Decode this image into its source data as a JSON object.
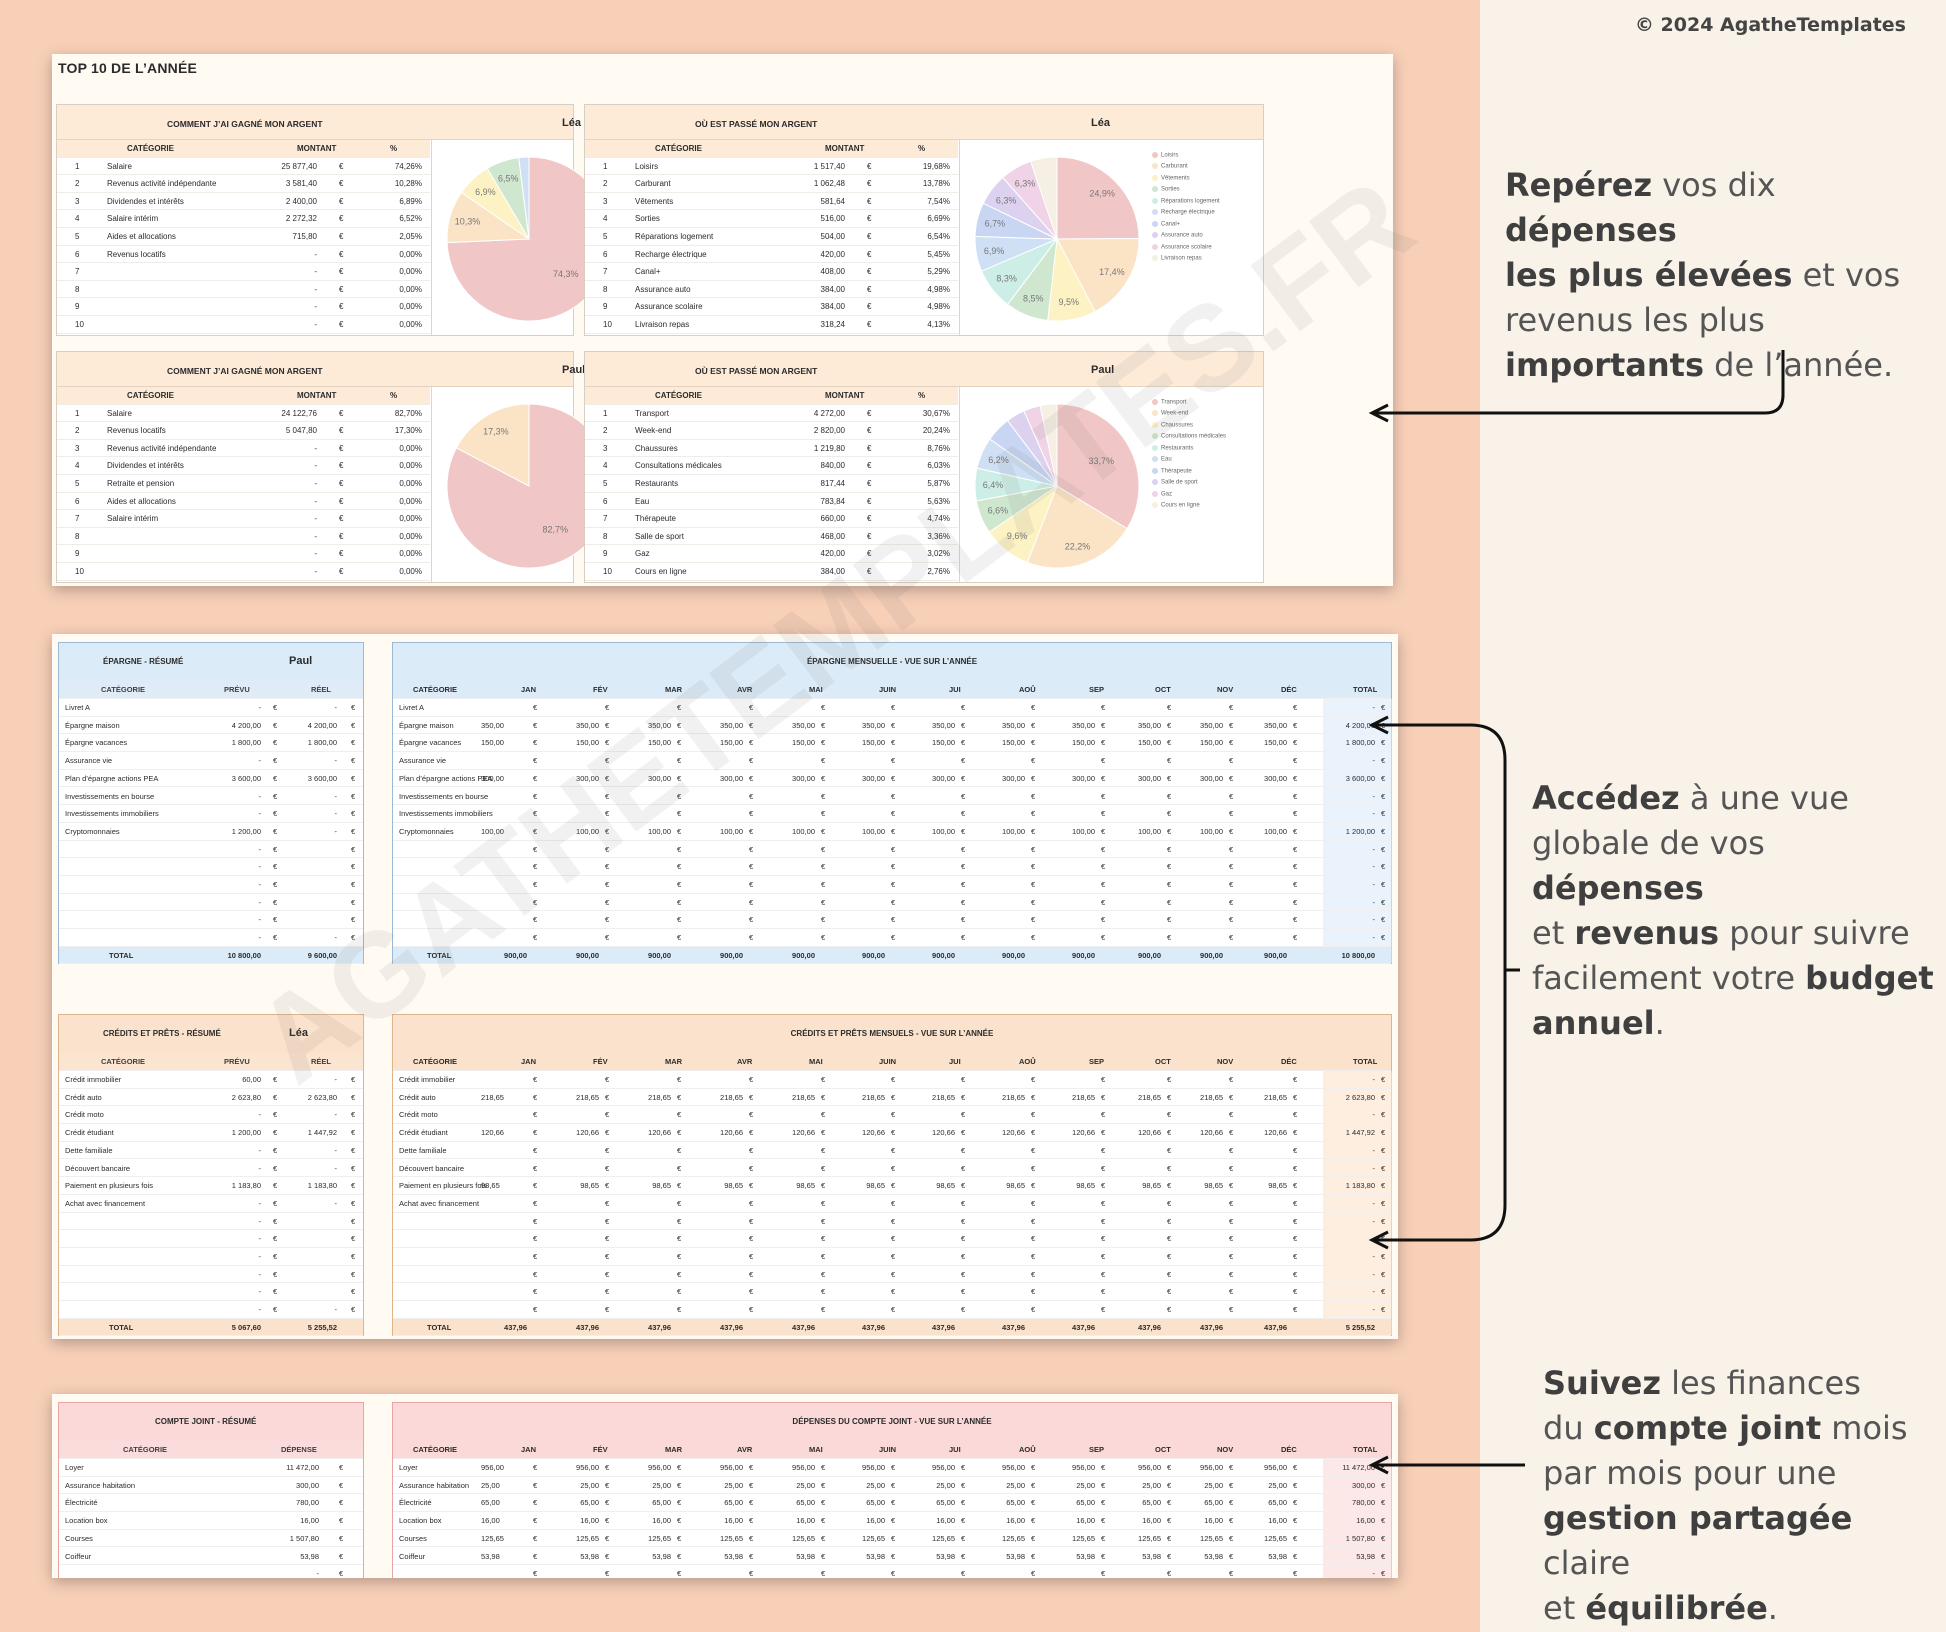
{
  "copyright": "© 2024 AgatheTemplates",
  "watermark": "AGATHETEMPLATES.FR",
  "top10": {
    "title": "TOP 10 DE L’ANNÉE",
    "blocks": [
      {
        "kind": "income",
        "title": "COMMENT J’AI GAGNÉ MON ARGENT",
        "who": "Léa",
        "headers": [
          "CATÉGORIE",
          "MONTANT",
          "%"
        ],
        "rows": [
          [
            "1",
            "Salaire",
            "25 877,40",
            "€",
            "74,26%"
          ],
          [
            "2",
            "Revenus activité indépendante",
            "3 581,40",
            "€",
            "10,28%"
          ],
          [
            "3",
            "Dividendes et intérêts",
            "2 400,00",
            "€",
            "6,89%"
          ],
          [
            "4",
            "Salaire intérim",
            "2 272,32",
            "€",
            "6,52%"
          ],
          [
            "5",
            "Aides et allocations",
            "715,80",
            "€",
            "2,05%"
          ],
          [
            "6",
            "Revenus locatifs",
            "-",
            "€",
            "0,00%"
          ],
          [
            "7",
            "",
            "-",
            "€",
            "0,00%"
          ],
          [
            "8",
            "",
            "-",
            "€",
            "0,00%"
          ],
          [
            "9",
            "",
            "-",
            "€",
            "0,00%"
          ],
          [
            "10",
            "",
            "-",
            "€",
            "0,00%"
          ]
        ],
        "pie": [
          {
            "label": "Salaire",
            "value": 74.3,
            "pct": "74,3%",
            "color": "#f1c6c6"
          },
          {
            "label": "Revenus activité indépendante",
            "value": 10.3,
            "pct": "10,3%",
            "color": "#fbe3c6"
          },
          {
            "label": "Dividendes et intérêts",
            "value": 6.9,
            "pct": "6,9%",
            "color": "#fdf2c4"
          },
          {
            "label": "Salaire intérim",
            "value": 6.5,
            "pct": "6,5%",
            "color": "#cfe7cf"
          },
          {
            "label": "Aides et allocations",
            "value": 2.0,
            "pct": "",
            "color": "#cfe0f5"
          }
        ]
      },
      {
        "kind": "expense",
        "title": "OÙ EST PASSÉ MON ARGENT",
        "who": "Léa",
        "headers": [
          "CATÉGORIE",
          "MONTANT",
          "%"
        ],
        "rows": [
          [
            "1",
            "Loisirs",
            "1 517,40",
            "€",
            "19,68%"
          ],
          [
            "2",
            "Carburant",
            "1 062,48",
            "€",
            "13,78%"
          ],
          [
            "3",
            "Vêtements",
            "581,64",
            "€",
            "7,54%"
          ],
          [
            "4",
            "Sorties",
            "516,00",
            "€",
            "6,69%"
          ],
          [
            "5",
            "Réparations logement",
            "504,00",
            "€",
            "6,54%"
          ],
          [
            "6",
            "Recharge électrique",
            "420,00",
            "€",
            "5,45%"
          ],
          [
            "7",
            "Canal+",
            "408,00",
            "€",
            "5,29%"
          ],
          [
            "8",
            "Assurance auto",
            "384,00",
            "€",
            "4,98%"
          ],
          [
            "9",
            "Assurance scolaire",
            "384,00",
            "€",
            "4,98%"
          ],
          [
            "10",
            "Livraison repas",
            "318,24",
            "€",
            "4,13%"
          ]
        ],
        "pie": [
          {
            "label": "Loisirs",
            "value": 24.9,
            "pct": "24,9%",
            "color": "#f1c6c6"
          },
          {
            "label": "Carburant",
            "value": 17.4,
            "pct": "17,4%",
            "color": "#fbe3c6"
          },
          {
            "label": "Vêtements",
            "value": 9.5,
            "pct": "9,5%",
            "color": "#fdf2c4"
          },
          {
            "label": "Sorties",
            "value": 8.5,
            "pct": "8,5%",
            "color": "#cfe7cf"
          },
          {
            "label": "Réparations logement",
            "value": 8.3,
            "pct": "8,3%",
            "color": "#cdeee6"
          },
          {
            "label": "Recharge électrique",
            "value": 6.9,
            "pct": "6,9%",
            "color": "#cfe0f5"
          },
          {
            "label": "Canal+",
            "value": 6.7,
            "pct": "6,7%",
            "color": "#c9d6f3"
          },
          {
            "label": "Assurance auto",
            "value": 6.3,
            "pct": "6,3%",
            "color": "#dcd2f0"
          },
          {
            "label": "Assurance scolaire",
            "value": 6.3,
            "pct": "6,3%",
            "color": "#f0d3e6"
          },
          {
            "label": "Livraison repas",
            "value": 5.2,
            "pct": "",
            "color": "#f5efe4"
          }
        ]
      },
      {
        "kind": "income",
        "title": "COMMENT J’AI GAGNÉ MON ARGENT",
        "who": "Paul",
        "headers": [
          "CATÉGORIE",
          "MONTANT",
          "%"
        ],
        "rows": [
          [
            "1",
            "Salaire",
            "24 122,76",
            "€",
            "82,70%"
          ],
          [
            "2",
            "Revenus locatifs",
            "5 047,80",
            "€",
            "17,30%"
          ],
          [
            "3",
            "Revenus activité indépendante",
            "-",
            "€",
            "0,00%"
          ],
          [
            "4",
            "Dividendes et intérêts",
            "-",
            "€",
            "0,00%"
          ],
          [
            "5",
            "Retraite et pension",
            "-",
            "€",
            "0,00%"
          ],
          [
            "6",
            "Aides et allocations",
            "-",
            "€",
            "0,00%"
          ],
          [
            "7",
            "Salaire intérim",
            "-",
            "€",
            "0,00%"
          ],
          [
            "8",
            "",
            "-",
            "€",
            "0,00%"
          ],
          [
            "9",
            "",
            "-",
            "€",
            "0,00%"
          ],
          [
            "10",
            "",
            "-",
            "€",
            "0,00%"
          ]
        ],
        "pie": [
          {
            "label": "Salaire",
            "value": 82.7,
            "pct": "82,7%",
            "color": "#f1c6c6"
          },
          {
            "label": "Revenus locatifs",
            "value": 17.3,
            "pct": "17,3%",
            "color": "#fbe3c6"
          }
        ]
      },
      {
        "kind": "expense",
        "title": "OÙ EST PASSÉ MON ARGENT",
        "who": "Paul",
        "headers": [
          "CATÉGORIE",
          "MONTANT",
          "%"
        ],
        "rows": [
          [
            "1",
            "Transport",
            "4 272,00",
            "€",
            "30,67%"
          ],
          [
            "2",
            "Week-end",
            "2 820,00",
            "€",
            "20,24%"
          ],
          [
            "3",
            "Chaussures",
            "1 219,80",
            "€",
            "8,76%"
          ],
          [
            "4",
            "Consultations médicales",
            "840,00",
            "€",
            "6,03%"
          ],
          [
            "5",
            "Restaurants",
            "817,44",
            "€",
            "5,87%"
          ],
          [
            "6",
            "Eau",
            "783,84",
            "€",
            "5,63%"
          ],
          [
            "7",
            "Thérapeute",
            "660,00",
            "€",
            "4,74%"
          ],
          [
            "8",
            "Salle de sport",
            "468,00",
            "€",
            "3,36%"
          ],
          [
            "9",
            "Gaz",
            "420,00",
            "€",
            "3,02%"
          ],
          [
            "10",
            "Cours en ligne",
            "384,00",
            "€",
            "2,76%"
          ]
        ],
        "pie": [
          {
            "label": "Transport",
            "value": 33.7,
            "pct": "33,7%",
            "color": "#f1c6c6"
          },
          {
            "label": "Week-end",
            "value": 22.2,
            "pct": "22,2%",
            "color": "#fbe3c6"
          },
          {
            "label": "Chaussures",
            "value": 9.6,
            "pct": "9,6%",
            "color": "#fdf2c4"
          },
          {
            "label": "Consultations médicales",
            "value": 6.6,
            "pct": "6,6%",
            "color": "#cfe7cf"
          },
          {
            "label": "Restaurants",
            "value": 6.4,
            "pct": "6,4%",
            "color": "#cdeee6"
          },
          {
            "label": "Eau",
            "value": 6.2,
            "pct": "6,2%",
            "color": "#cfe0f5"
          },
          {
            "label": "Thérapeute",
            "value": 5.0,
            "pct": "",
            "color": "#c9d6f3"
          },
          {
            "label": "Salle de sport",
            "value": 3.7,
            "pct": "",
            "color": "#dcd2f0"
          },
          {
            "label": "Gaz",
            "value": 3.3,
            "pct": "",
            "color": "#f0d3e6"
          },
          {
            "label": "Cours en ligne",
            "value": 3.3,
            "pct": "",
            "color": "#f5efe4"
          }
        ]
      }
    ]
  },
  "epargne": {
    "summary_title": "ÉPARGNE - RÉSUMÉ",
    "who": "Paul",
    "summary_headers": [
      "CATÉGORIE",
      "PRÉVU",
      "RÉEL"
    ],
    "summary_rows": [
      [
        "Livret A",
        "-",
        "-"
      ],
      [
        "Épargne maison",
        "4 200,00",
        "4 200,00"
      ],
      [
        "Épargne vacances",
        "1 800,00",
        "1 800,00"
      ],
      [
        "Assurance vie",
        "-",
        "-"
      ],
      [
        "Plan d’épargne actions PEA",
        "3 600,00",
        "3 600,00"
      ],
      [
        "Investissements en bourse",
        "-",
        "-"
      ],
      [
        "Investissements immobiliers",
        "-",
        "-"
      ],
      [
        "Cryptomonnaies",
        "1 200,00",
        "-"
      ],
      [
        "",
        "-",
        ""
      ],
      [
        "",
        "-",
        ""
      ],
      [
        "",
        "-",
        ""
      ],
      [
        "",
        "-",
        ""
      ],
      [
        "",
        "-",
        ""
      ],
      [
        "",
        "-",
        "-"
      ]
    ],
    "summary_total": [
      "TOTAL",
      "10 800,00",
      "9 600,00"
    ],
    "monthly_title": "ÉPARGNE MENSUELLE - VUE SUR L’ANNÉE",
    "months": [
      "CATÉGORIE",
      "JAN",
      "FÉV",
      "MAR",
      "AVR",
      "MAI",
      "JUIN",
      "JUI",
      "AOÛ",
      "SEP",
      "OCT",
      "NOV",
      "DÉC",
      "TOTAL"
    ],
    "monthly_rows": [
      [
        "Livret A",
        "",
        "-"
      ],
      [
        "Épargne maison",
        "350,00",
        "4 200,00"
      ],
      [
        "Épargne vacances",
        "150,00",
        "1 800,00"
      ],
      [
        "Assurance vie",
        "",
        "-"
      ],
      [
        "Plan d’épargne actions PEA",
        "300,00",
        "3 600,00"
      ],
      [
        "Investissements en bourse",
        "",
        "-"
      ],
      [
        "Investissements immobiliers",
        "",
        "-"
      ],
      [
        "Cryptomonnaies",
        "100,00",
        "1 200,00"
      ],
      [
        "",
        "",
        "-"
      ],
      [
        "",
        "",
        "-"
      ],
      [
        "",
        "",
        "-"
      ],
      [
        "",
        "",
        "-"
      ],
      [
        "",
        "",
        "-"
      ],
      [
        "",
        "",
        "-"
      ]
    ],
    "monthly_total": [
      "TOTAL",
      "900,00",
      "10 800,00"
    ]
  },
  "credits": {
    "summary_title": "CRÉDITS ET PRÊTS - RÉSUMÉ",
    "who": "Léa",
    "summary_headers": [
      "CATÉGORIE",
      "PRÉVU",
      "RÉEL"
    ],
    "summary_rows": [
      [
        "Crédit immobilier",
        "60,00",
        "-"
      ],
      [
        "Crédit auto",
        "2 623,80",
        "2 623,80"
      ],
      [
        "Crédit moto",
        "-",
        "-"
      ],
      [
        "Crédit étudiant",
        "1 200,00",
        "1 447,92"
      ],
      [
        "Dette familiale",
        "-",
        "-"
      ],
      [
        "Découvert bancaire",
        "-",
        "-"
      ],
      [
        "Paiement en plusieurs fois",
        "1 183,80",
        "1 183,80"
      ],
      [
        "Achat avec financement",
        "-",
        "-"
      ],
      [
        "",
        "-",
        ""
      ],
      [
        "",
        "-",
        ""
      ],
      [
        "",
        "-",
        ""
      ],
      [
        "",
        "-",
        ""
      ],
      [
        "",
        "-",
        ""
      ],
      [
        "",
        "-",
        "-"
      ]
    ],
    "summary_total": [
      "TOTAL",
      "5 067,60",
      "5 255,52"
    ],
    "monthly_title": "CRÉDITS ET PRÊTS MENSUELS - VUE SUR L’ANNÉE",
    "months": [
      "CATÉGORIE",
      "JAN",
      "FÉV",
      "MAR",
      "AVR",
      "MAI",
      "JUIN",
      "JUI",
      "AOÛ",
      "SEP",
      "OCT",
      "NOV",
      "DÉC",
      "TOTAL"
    ],
    "monthly_rows": [
      [
        "Crédit immobilier",
        "",
        "-"
      ],
      [
        "Crédit auto",
        "218,65",
        "2 623,80"
      ],
      [
        "Crédit moto",
        "",
        "-"
      ],
      [
        "Crédit étudiant",
        "120,66",
        "1 447,92"
      ],
      [
        "Dette familiale",
        "",
        "-"
      ],
      [
        "Découvert bancaire",
        "",
        "-"
      ],
      [
        "Paiement en plusieurs fois",
        "98,65",
        "1 183,80"
      ],
      [
        "Achat avec financement",
        "",
        "-"
      ],
      [
        "",
        "",
        "-"
      ],
      [
        "",
        "",
        "-"
      ],
      [
        "",
        "",
        "-"
      ],
      [
        "",
        "",
        "-"
      ],
      [
        "",
        "",
        "-"
      ],
      [
        "",
        "",
        "-"
      ]
    ],
    "monthly_total": [
      "TOTAL",
      "437,96",
      "5 255,52"
    ]
  },
  "joint": {
    "summary_title": "COMPTE JOINT - RÉSUMÉ",
    "summary_headers": [
      "CATÉGORIE",
      "DÉPENSE"
    ],
    "summary_rows": [
      [
        "Loyer",
        "11 472,00"
      ],
      [
        "Assurance habitation",
        "300,00"
      ],
      [
        "Électricité",
        "780,00"
      ],
      [
        "Location box",
        "16,00"
      ],
      [
        "Courses",
        "1 507,80"
      ],
      [
        "Coiffeur",
        "53,98"
      ],
      [
        "",
        "-"
      ]
    ],
    "monthly_title": "DÉPENSES DU COMPTE JOINT - VUE SUR L’ANNÉE",
    "months": [
      "CATÉGORIE",
      "JAN",
      "FÉV",
      "MAR",
      "AVR",
      "MAI",
      "JUIN",
      "JUI",
      "AOÛ",
      "SEP",
      "OCT",
      "NOV",
      "DÉC",
      "TOTAL"
    ],
    "monthly_rows": [
      [
        "Loyer",
        "956,00",
        "11 472,00"
      ],
      [
        "Assurance habitation",
        "25,00",
        "300,00"
      ],
      [
        "Électricité",
        "65,00",
        "780,00"
      ],
      [
        "Location box",
        "16,00",
        "16,00"
      ],
      [
        "Courses",
        "125,65",
        "1 507,80"
      ],
      [
        "Coiffeur",
        "53,98",
        "53,98"
      ],
      [
        "",
        "",
        "-"
      ]
    ]
  },
  "captions": [
    {
      "parts": [
        [
          "b",
          "Repérez"
        ],
        [
          "t",
          " vos dix "
        ],
        [
          "b",
          "dépenses"
        ],
        [
          "br",
          ""
        ],
        [
          "b",
          "les plus élevées"
        ],
        [
          "t",
          " et vos"
        ],
        [
          "br",
          ""
        ],
        [
          "t",
          "revenus les plus"
        ],
        [
          "br",
          ""
        ],
        [
          "b",
          "importants"
        ],
        [
          "t",
          " de l’année."
        ]
      ]
    },
    {
      "parts": [
        [
          "b",
          "Accédez"
        ],
        [
          "t",
          " à une vue"
        ],
        [
          "br",
          ""
        ],
        [
          "t",
          "globale de vos "
        ],
        [
          "b",
          "dépenses"
        ],
        [
          "br",
          ""
        ],
        [
          "t",
          "et "
        ],
        [
          "b",
          "revenus"
        ],
        [
          "t",
          " pour suivre"
        ],
        [
          "br",
          ""
        ],
        [
          "t",
          "facilement votre "
        ],
        [
          "b",
          "budget"
        ],
        [
          "br",
          ""
        ],
        [
          "b",
          "annuel"
        ],
        [
          "t",
          "."
        ]
      ]
    },
    {
      "parts": [
        [
          "b",
          "Suivez"
        ],
        [
          "t",
          " les finances"
        ],
        [
          "br",
          ""
        ],
        [
          "t",
          "du "
        ],
        [
          "b",
          "compte joint"
        ],
        [
          "t",
          " mois"
        ],
        [
          "br",
          ""
        ],
        [
          "t",
          "par mois pour une"
        ],
        [
          "br",
          ""
        ],
        [
          "b",
          "gestion partagée"
        ],
        [
          "t",
          " claire"
        ],
        [
          "br",
          ""
        ],
        [
          "t",
          "et "
        ],
        [
          "b",
          "équilibrée"
        ],
        [
          "t",
          "."
        ]
      ]
    }
  ]
}
